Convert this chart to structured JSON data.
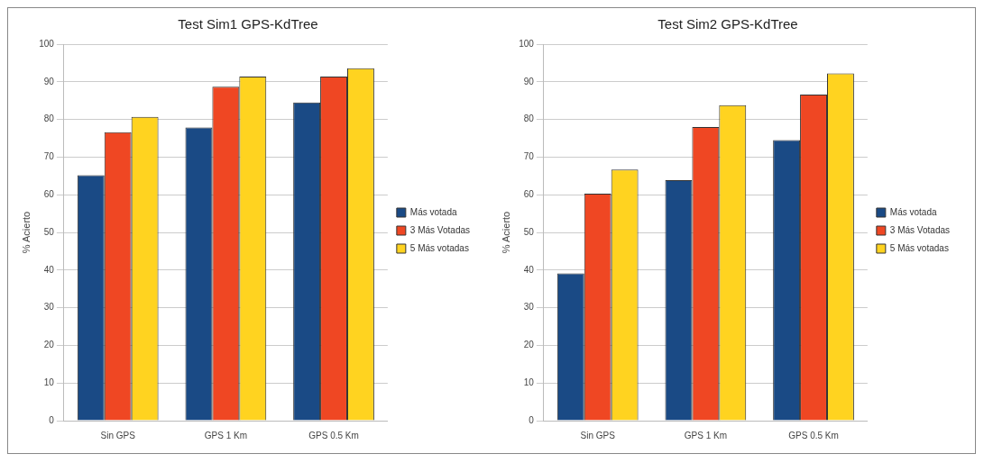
{
  "chart_data": [
    {
      "type": "bar",
      "title": "Test Sim1 GPS-KdTree",
      "ylabel": "% Acierto",
      "categories": [
        "Sin GPS",
        "GPS 1 Km",
        "GPS 0.5 Km"
      ],
      "series": [
        {
          "name": "Más votada",
          "color": "#1a4a85",
          "values": [
            65.2,
            77.9,
            84.5
          ]
        },
        {
          "name": "3 Más Votadas",
          "color": "#ef4723",
          "values": [
            76.6,
            88.7,
            91.4
          ]
        },
        {
          "name": "5 Más votadas",
          "color": "#ffd320",
          "values": [
            80.7,
            91.4,
            93.6
          ]
        }
      ],
      "ylim": [
        0,
        100
      ],
      "yticks": [
        0,
        10,
        20,
        30,
        40,
        50,
        60,
        70,
        80,
        90,
        100
      ],
      "grid": "y",
      "legend": "right"
    },
    {
      "type": "bar",
      "title": "Test Sim2 GPS-KdTree",
      "ylabel": "% Acierto",
      "categories": [
        "Sin GPS",
        "GPS 1 Km",
        "GPS 0.5 Km"
      ],
      "series": [
        {
          "name": "Más votada",
          "color": "#1a4a85",
          "values": [
            39.1,
            63.9,
            74.5
          ]
        },
        {
          "name": "3 Más Votadas",
          "color": "#ef4723",
          "values": [
            60.3,
            78.0,
            86.6
          ]
        },
        {
          "name": "5 Más votadas",
          "color": "#ffd320",
          "values": [
            66.7,
            83.8,
            92.2
          ]
        }
      ],
      "ylim": [
        0,
        100
      ],
      "yticks": [
        0,
        10,
        20,
        30,
        40,
        50,
        60,
        70,
        80,
        90,
        100
      ],
      "grid": "y",
      "legend": "right"
    }
  ]
}
